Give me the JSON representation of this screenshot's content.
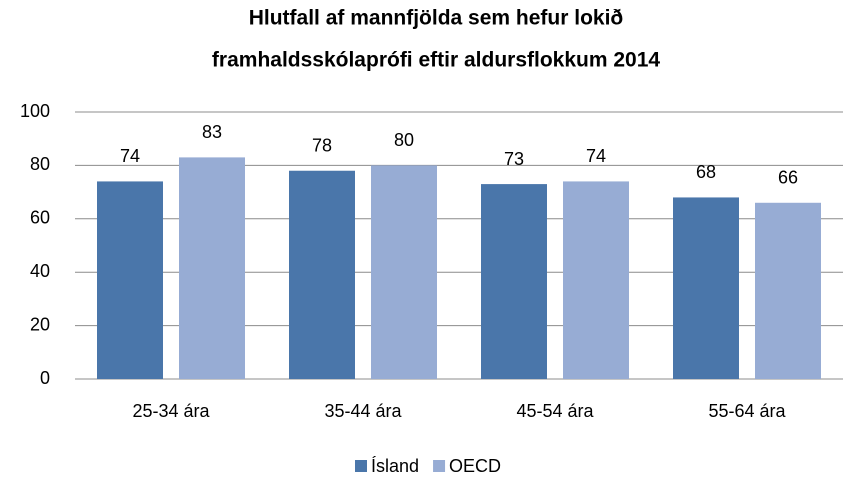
{
  "chart_data": {
    "type": "bar",
    "title": [
      "Hlutfall af mannfjölda sem hefur lokið",
      "framhaldsskólaprófi eftir aldursflokkum 2014"
    ],
    "categories": [
      "25-34 ára",
      "35-44 ára",
      "45-54 ára",
      "55-64 ára"
    ],
    "series": [
      {
        "name": "Ísland",
        "color": "#4a76aa",
        "values": [
          74,
          78,
          73,
          68
        ]
      },
      {
        "name": "OECD",
        "color": "#97acd4",
        "values": [
          83,
          80,
          74,
          66
        ]
      }
    ],
    "ylim": [
      0,
      100
    ],
    "yticks": [
      0,
      20,
      40,
      60,
      80,
      100
    ],
    "grid": true,
    "legend": "bottom"
  }
}
